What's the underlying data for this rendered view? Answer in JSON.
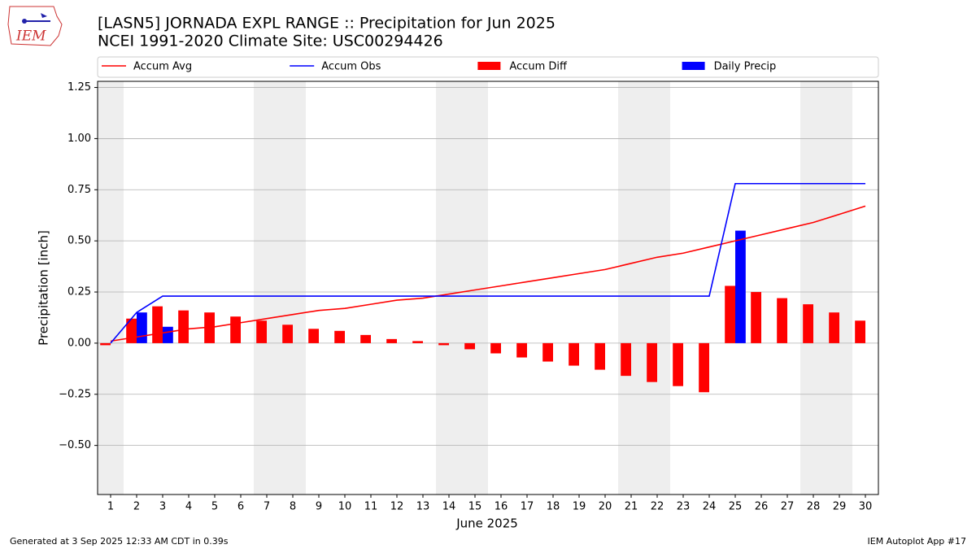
{
  "chart_data": {
    "type": "combo",
    "title": "[LASN5] JORNADA EXPL RANGE :: Precipitation for Jun 2025",
    "subtitle": "NCEI 1991-2020 Climate Site: USC00294426",
    "logo_text": "IEM",
    "x_label": "June 2025",
    "y_label": "Precipitation [inch]",
    "footer_left": "Generated at 3 Sep 2025 12:33 AM CDT in 0.39s",
    "footer_right": "IEM Autoplot App #17",
    "x": [
      1,
      2,
      3,
      4,
      5,
      6,
      7,
      8,
      9,
      10,
      11,
      12,
      13,
      14,
      15,
      16,
      17,
      18,
      19,
      20,
      21,
      22,
      23,
      24,
      25,
      26,
      27,
      28,
      29,
      30
    ],
    "xlim": [
      0.5,
      30.5
    ],
    "xticks": [
      1,
      2,
      3,
      4,
      5,
      6,
      7,
      8,
      9,
      10,
      11,
      12,
      13,
      14,
      15,
      16,
      17,
      18,
      19,
      20,
      21,
      22,
      23,
      24,
      25,
      26,
      27,
      28,
      29,
      30
    ],
    "ylim": [
      -0.74,
      1.28
    ],
    "yticks": [
      {
        "value": -0.5,
        "label": "−0.50"
      },
      {
        "value": -0.25,
        "label": "−0.25"
      },
      {
        "value": 0,
        "label": "0.00"
      },
      0.25,
      {
        "value": 0.5,
        "label": "0.50"
      },
      0.75,
      {
        "value": 1,
        "label": "1.00"
      },
      1.25
    ],
    "grid": true,
    "shading": [
      [
        0.5,
        1.5
      ],
      [
        6.5,
        8.5
      ],
      [
        13.5,
        15.5
      ],
      [
        20.5,
        22.5
      ],
      [
        27.5,
        29.5
      ]
    ],
    "shading_color": "#eeeeee",
    "legend": "top",
    "series": [
      {
        "name": "Accum Avg",
        "kind": "line",
        "color": "#ff0000",
        "values": [
          0.01,
          0.03,
          0.05,
          0.07,
          0.08,
          0.1,
          0.12,
          0.14,
          0.16,
          0.17,
          0.19,
          0.21,
          0.22,
          0.24,
          0.26,
          0.28,
          0.3,
          0.32,
          0.34,
          0.36,
          0.39,
          0.42,
          0.44,
          0.47,
          0.5,
          0.53,
          0.56,
          0.59,
          0.63,
          0.67
        ]
      },
      {
        "name": "Accum Obs",
        "kind": "line",
        "color": "#0000ff",
        "values": [
          0,
          0.15,
          0.23,
          0.23,
          0.23,
          0.23,
          0.23,
          0.23,
          0.23,
          0.23,
          0.23,
          0.23,
          0.23,
          0.23,
          0.23,
          0.23,
          0.23,
          0.23,
          0.23,
          0.23,
          0.23,
          0.23,
          0.23,
          0.23,
          0.78,
          0.78,
          0.78,
          0.78,
          0.78,
          0.78
        ]
      },
      {
        "name": "Accum Diff",
        "kind": "bar",
        "color": "#ff0000",
        "values": [
          -0.01,
          0.12,
          0.18,
          0.16,
          0.15,
          0.13,
          0.11,
          0.09,
          0.07,
          0.06,
          0.04,
          0.02,
          0.01,
          -0.01,
          -0.03,
          -0.05,
          -0.07,
          -0.09,
          -0.11,
          -0.13,
          -0.16,
          -0.19,
          -0.21,
          -0.24,
          0.28,
          0.25,
          0.22,
          0.19,
          0.15,
          0.11
        ]
      },
      {
        "name": "Daily Precip",
        "kind": "bar",
        "color": "#0000ff",
        "values": [
          0,
          0.15,
          0.08,
          0,
          0,
          0,
          0,
          0,
          0,
          0,
          0,
          0,
          0,
          0,
          0,
          0,
          0,
          0,
          0,
          0,
          0,
          0,
          0,
          0,
          0.55,
          0,
          0,
          0,
          0,
          0
        ]
      }
    ]
  }
}
